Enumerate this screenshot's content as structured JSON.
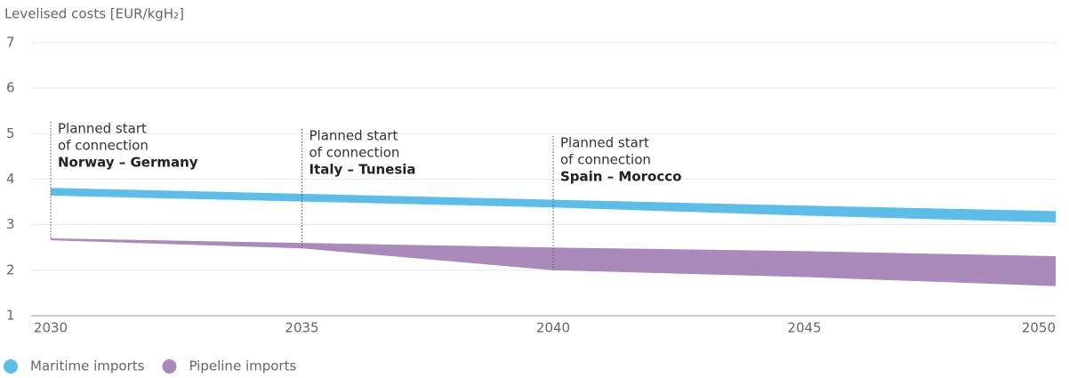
{
  "chart_data": {
    "type": "area-range",
    "y_label": "Levelised costs [EUR/kgH₂]",
    "x": [
      2030,
      2035,
      2040,
      2045,
      2050
    ],
    "xlim": [
      2030,
      2050
    ],
    "xticks": [
      2030,
      2035,
      2040,
      2045,
      2050
    ],
    "ylim": [
      1,
      7
    ],
    "yticks": [
      1,
      2,
      3,
      4,
      5,
      6,
      7
    ],
    "grid": true,
    "series": [
      {
        "name": "Maritime imports",
        "color": "#5bbde8",
        "upper": [
          3.81,
          3.68,
          3.55,
          3.42,
          3.3
        ],
        "lower": [
          3.64,
          3.51,
          3.38,
          3.2,
          3.05
        ]
      },
      {
        "name": "Pipeline imports",
        "color": "#a98abb",
        "upper": [
          2.7,
          2.6,
          2.5,
          2.42,
          2.31
        ],
        "lower": [
          2.66,
          2.48,
          2.0,
          1.85,
          1.65
        ]
      }
    ],
    "annotations": [
      {
        "x": 2030,
        "lines": [
          "Planned start",
          "of connection"
        ],
        "bold": "Norway – Germany"
      },
      {
        "x": 2035,
        "lines": [
          "Planned start",
          "of connection"
        ],
        "bold": "Italy – Tunesia"
      },
      {
        "x": 2040,
        "lines": [
          "Planned start",
          "of connection"
        ],
        "bold": "Spain – Morocco"
      }
    ],
    "legend": "bottom-left"
  }
}
